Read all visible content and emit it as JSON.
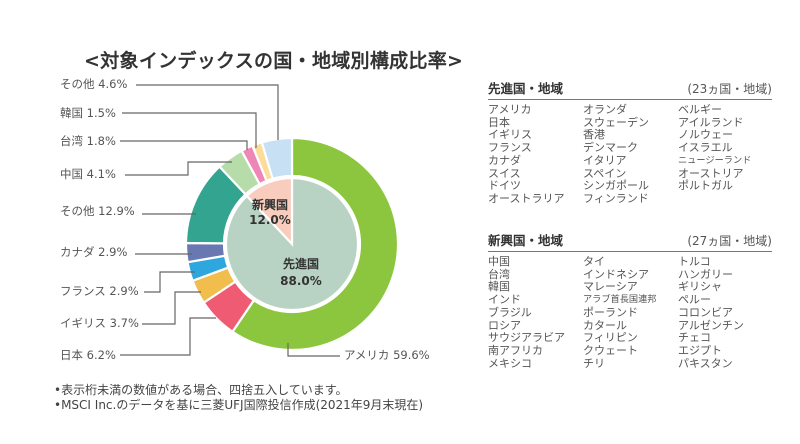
{
  "chart_data": {
    "type": "pie",
    "title": "<対象インデックスの国・地域別構成比率>",
    "unit": "%",
    "inner": {
      "slices": [
        {
          "label": "先進国",
          "value": 88.0,
          "color": "#b8d3c3"
        },
        {
          "label": "新興国",
          "value": 12.0,
          "color": "#f8cdbd"
        }
      ]
    },
    "outer": {
      "slices": [
        {
          "label": "アメリカ",
          "value": 59.6,
          "color": "#8cc63f"
        },
        {
          "label": "日本",
          "value": 6.2,
          "color": "#ef5b73"
        },
        {
          "label": "イギリス",
          "value": 3.7,
          "color": "#f1bd4c"
        },
        {
          "label": "フランス",
          "value": 2.9,
          "color": "#2ea7df"
        },
        {
          "label": "カナダ",
          "value": 2.9,
          "color": "#6a78b1"
        },
        {
          "label": "その他",
          "value": 12.9,
          "color": "#33a48f"
        },
        {
          "label": "中国",
          "value": 4.1,
          "color": "#b6dcaa"
        },
        {
          "label": "台湾",
          "value": 1.8,
          "color": "#ee86b6"
        },
        {
          "label": "韓国",
          "value": 1.5,
          "color": "#fbdc9a"
        },
        {
          "label": "その他",
          "value": 4.6,
          "color": "#c7e0f3"
        }
      ]
    }
  },
  "developed": {
    "title": "先進国・地域",
    "count": "(23ヵ国・地域)",
    "columns": [
      [
        "アメリカ",
        "日本",
        "イギリス",
        "フランス",
        "カナダ",
        "スイス",
        "ドイツ",
        "オーストラリア"
      ],
      [
        "オランダ",
        "スウェーデン",
        "香港",
        "デンマーク",
        "イタリア",
        "スペイン",
        "シンガポール",
        "フィンランド"
      ],
      [
        "ベルギー",
        "アイルランド",
        "ノルウェー",
        "イスラエル",
        "ニュージーランド",
        "オーストリア",
        "ポルトガル"
      ]
    ]
  },
  "emerging": {
    "title": "新興国・地域",
    "count": "(27ヵ国・地域)",
    "columns": [
      [
        "中国",
        "台湾",
        "韓国",
        "インド",
        "ブラジル",
        "ロシア",
        "サウジアラビア",
        "南アフリカ",
        "メキシコ"
      ],
      [
        "タイ",
        "インドネシア",
        "マレーシア",
        "アラブ首長国連邦",
        "ポーランド",
        "カタール",
        "フィリピン",
        "クウェート",
        "チリ"
      ],
      [
        "トルコ",
        "ハンガリー",
        "ギリシャ",
        "ペルー",
        "コロンビア",
        "アルゼンチン",
        "チェコ",
        "エジプト",
        "パキスタン"
      ]
    ]
  },
  "notes": [
    "•表示桁未満の数値がある場合、四捨五入しています。",
    "•MSCI Inc.のデータを基に三菱UFJ国際投信作成(2021年9月末現在)"
  ]
}
